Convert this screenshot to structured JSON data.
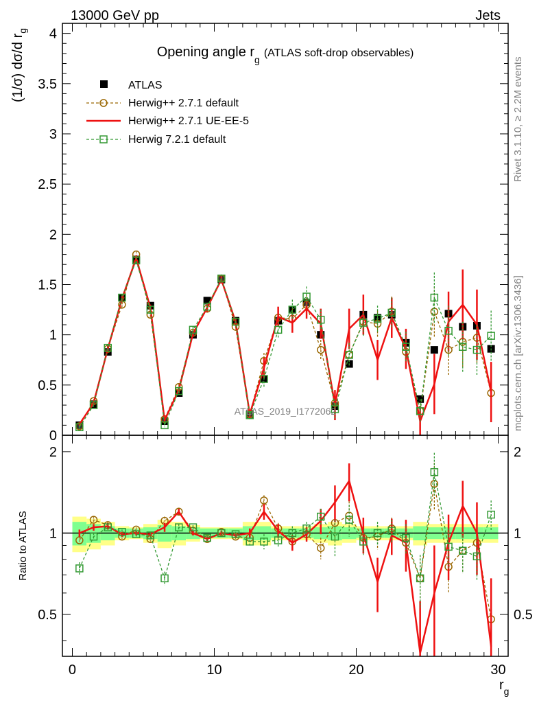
{
  "header": {
    "left": "13000 GeV pp",
    "right": "Jets"
  },
  "side_text": {
    "rivet": "Rivet 3.1.10, ≥ 2.2M events",
    "mcplots": "mcplots.cern.ch [arXiv:1306.3436]"
  },
  "watermark": "ATLAS_2019_I1772062",
  "colors": {
    "data": "#000000",
    "herwigpp_default": "#996600",
    "herwigpp_ueee5": "#ee1111",
    "herwig72_default": "#339933",
    "band_inner": "#7fff8f",
    "band_outer": "#ffff88"
  },
  "chart_data": [
    {
      "type": "line",
      "title": "Opening angle r_g (ATLAS soft-drop observables)",
      "title_parts": {
        "main": "Opening angle r",
        "sub": "g",
        "small": "(ATLAS soft-drop observables)"
      },
      "ylabel": "(1/σ) dσ/d r_g",
      "ylabel_parts": {
        "main": "(1/σ) dσ/d r",
        "sub": "g"
      },
      "xlim": [
        -0.7,
        30.7
      ],
      "ylim": [
        0,
        4.1
      ],
      "yticks": [
        0,
        0.5,
        1,
        1.5,
        2,
        2.5,
        3,
        3.5,
        4
      ],
      "ytick_labels": [
        "0",
        "0.5",
        "1",
        "1.5",
        "2",
        "2.5",
        "3",
        "3.5",
        "4"
      ],
      "legend_position": "top-left",
      "legend": [
        "ATLAS",
        "Herwig++ 2.7.1 default",
        "Herwig++ 2.7.1 UE-EE-5",
        "Herwig 7.2.1 default"
      ],
      "x": [
        0.5,
        1.5,
        2.5,
        3.5,
        4.5,
        5.5,
        6.5,
        7.5,
        8.5,
        9.5,
        10.5,
        11.5,
        12.5,
        13.5,
        14.5,
        15.5,
        16.5,
        17.5,
        18.5,
        19.5,
        20.5,
        21.5,
        22.5,
        23.5,
        24.5,
        25.5,
        26.5,
        27.5,
        28.5,
        29.5
      ],
      "series": [
        {
          "name": "ATLAS",
          "style": "markers",
          "values": [
            0.1,
            0.31,
            0.83,
            1.37,
            1.75,
            1.29,
            0.14,
            0.42,
            1.0,
            1.34,
            1.55,
            1.14,
            0.21,
            0.56,
            1.14,
            1.25,
            1.32,
            1.0,
            0.29,
            0.71,
            1.2,
            1.17,
            1.2,
            0.92,
            0.36,
            0.85,
            1.21,
            1.08,
            1.09,
            0.86
          ]
        },
        {
          "name": "Herwig++ 2.7.1 default",
          "style": "dashed-circle",
          "values": [
            0.09,
            0.34,
            0.86,
            1.3,
            1.8,
            1.2,
            0.16,
            0.48,
            1.02,
            1.26,
            1.56,
            1.08,
            0.21,
            0.74,
            1.17,
            1.16,
            1.3,
            0.85,
            0.32,
            0.8,
            1.13,
            1.11,
            1.23,
            0.83,
            0.24,
            1.23,
            0.85,
            0.93,
            0.97,
            0.42
          ],
          "errors": [
            0.01,
            0.02,
            0.03,
            0.03,
            0.03,
            0.03,
            0.02,
            0.03,
            0.03,
            0.04,
            0.04,
            0.04,
            0.03,
            0.08,
            0.08,
            0.1,
            0.1,
            0.1,
            0.1,
            0.12,
            0.13,
            0.13,
            0.15,
            0.15,
            0.12,
            0.25,
            0.25,
            0.25,
            0.25,
            0.25
          ]
        },
        {
          "name": "Herwig++ 2.7.1 UE-EE-5",
          "style": "solid",
          "values": [
            0.11,
            0.32,
            0.86,
            1.36,
            1.76,
            1.27,
            0.15,
            0.45,
            1.01,
            1.27,
            1.55,
            1.13,
            0.21,
            0.67,
            1.18,
            1.12,
            1.26,
            1.11,
            0.3,
            1.06,
            1.2,
            0.75,
            1.17,
            0.86,
            0.14,
            0.51,
            1.13,
            1.3,
            1.1,
            0.43
          ],
          "errors": [
            0.01,
            0.02,
            0.03,
            0.03,
            0.03,
            0.03,
            0.02,
            0.03,
            0.03,
            0.04,
            0.04,
            0.04,
            0.04,
            0.1,
            0.1,
            0.1,
            0.1,
            0.15,
            0.15,
            0.2,
            0.2,
            0.2,
            0.2,
            0.2,
            0.15,
            0.3,
            0.3,
            0.35,
            0.35,
            0.3
          ]
        },
        {
          "name": "Herwig 7.2.1 default",
          "style": "dashed-square",
          "values": [
            0.08,
            0.3,
            0.87,
            1.37,
            1.74,
            1.25,
            0.1,
            0.44,
            1.05,
            1.28,
            1.56,
            1.13,
            0.2,
            0.56,
            1.05,
            1.25,
            1.38,
            1.15,
            0.26,
            0.8,
            1.12,
            1.16,
            1.22,
            0.88,
            0.24,
            1.37,
            1.04,
            0.88,
            0.85,
            0.99
          ],
          "errors": [
            0.01,
            0.02,
            0.03,
            0.03,
            0.03,
            0.03,
            0.02,
            0.03,
            0.03,
            0.04,
            0.04,
            0.04,
            0.04,
            0.08,
            0.08,
            0.1,
            0.1,
            0.1,
            0.1,
            0.12,
            0.13,
            0.13,
            0.15,
            0.15,
            0.12,
            0.25,
            0.25,
            0.25,
            0.25,
            0.25
          ]
        }
      ]
    },
    {
      "type": "line",
      "ylabel": "Ratio to ATLAS",
      "xlabel": "r_g",
      "xlabel_parts": {
        "main": "r",
        "sub": "g"
      },
      "xlim": [
        -0.7,
        30.7
      ],
      "ylim": [
        0.35,
        2.3
      ],
      "yscale": "log",
      "yticks": [
        0.5,
        1,
        2
      ],
      "ytick_labels": [
        "0.5",
        "1",
        "2"
      ],
      "xticks": [
        0,
        10,
        20,
        30
      ],
      "xtick_labels": [
        "0",
        "10",
        "20",
        "30"
      ],
      "reference_line": 1,
      "x": [
        0.5,
        1.5,
        2.5,
        3.5,
        4.5,
        5.5,
        6.5,
        7.5,
        8.5,
        9.5,
        10.5,
        11.5,
        12.5,
        13.5,
        14.5,
        15.5,
        16.5,
        17.5,
        18.5,
        19.5,
        20.5,
        21.5,
        22.5,
        23.5,
        24.5,
        25.5,
        26.5,
        27.5,
        28.5,
        29.5
      ],
      "band_inner": [
        0.1,
        0.08,
        0.06,
        0.04,
        0.04,
        0.05,
        0.07,
        0.06,
        0.05,
        0.04,
        0.04,
        0.04,
        0.06,
        0.06,
        0.04,
        0.04,
        0.04,
        0.05,
        0.06,
        0.05,
        0.04,
        0.04,
        0.04,
        0.04,
        0.06,
        0.05,
        0.05,
        0.05,
        0.05,
        0.05
      ],
      "band_outer": [
        0.15,
        0.13,
        0.1,
        0.06,
        0.05,
        0.08,
        0.12,
        0.1,
        0.07,
        0.05,
        0.05,
        0.05,
        0.1,
        0.1,
        0.06,
        0.06,
        0.06,
        0.08,
        0.1,
        0.08,
        0.06,
        0.06,
        0.06,
        0.06,
        0.1,
        0.08,
        0.08,
        0.08,
        0.08,
        0.08
      ],
      "series": [
        {
          "name": "Herwig++ 2.7.1 default",
          "style": "dashed-circle",
          "values": [
            0.94,
            1.12,
            1.07,
            0.97,
            1.03,
            0.95,
            1.11,
            1.2,
            1.02,
            0.95,
            1.01,
            0.97,
            0.96,
            1.32,
            1.04,
            0.93,
            0.99,
            0.88,
            1.09,
            1.16,
            0.96,
            0.97,
            1.04,
            0.92,
            0.68,
            1.52,
            0.75,
            0.86,
            0.92,
            0.48
          ],
          "errors": [
            0.03,
            0.03,
            0.03,
            0.02,
            0.02,
            0.02,
            0.04,
            0.03,
            0.02,
            0.02,
            0.02,
            0.02,
            0.04,
            0.06,
            0.05,
            0.06,
            0.06,
            0.08,
            0.15,
            0.15,
            0.1,
            0.1,
            0.1,
            0.12,
            0.15,
            0.3,
            0.15,
            0.15,
            0.15,
            0.15
          ]
        },
        {
          "name": "Herwig++ 2.7.1 UE-EE-5",
          "style": "solid",
          "values": [
            1.0,
            1.05,
            1.06,
            0.99,
            1.0,
            0.99,
            1.05,
            1.2,
            1.0,
            0.95,
            1.0,
            0.98,
            1.0,
            1.2,
            1.02,
            0.92,
            0.99,
            1.11,
            1.3,
            1.56,
            0.99,
            0.66,
            0.98,
            0.92,
            0.36,
            0.6,
            0.92,
            1.26,
            1.0,
            0.38
          ],
          "errors": [
            0.03,
            0.03,
            0.03,
            0.02,
            0.02,
            0.02,
            0.04,
            0.03,
            0.02,
            0.02,
            0.02,
            0.02,
            0.04,
            0.08,
            0.06,
            0.06,
            0.06,
            0.12,
            0.2,
            0.25,
            0.15,
            0.15,
            0.15,
            0.2,
            0.2,
            0.3,
            0.25,
            0.3,
            0.3,
            0.3
          ]
        },
        {
          "name": "Herwig 7.2.1 default",
          "style": "dashed-square",
          "values": [
            0.74,
            0.97,
            1.05,
            1.01,
            0.99,
            0.98,
            0.68,
            1.05,
            1.05,
            0.96,
            1.0,
            0.99,
            0.93,
            0.93,
            0.94,
            1.0,
            1.04,
            1.15,
            0.97,
            1.12,
            0.93,
            1.0,
            1.02,
            0.96,
            0.68,
            1.68,
            0.89,
            0.86,
            0.82,
            1.17
          ],
          "errors": [
            0.04,
            0.03,
            0.03,
            0.02,
            0.02,
            0.02,
            0.04,
            0.03,
            0.02,
            0.02,
            0.02,
            0.02,
            0.04,
            0.06,
            0.05,
            0.06,
            0.06,
            0.08,
            0.15,
            0.15,
            0.1,
            0.1,
            0.1,
            0.12,
            0.15,
            0.3,
            0.15,
            0.15,
            0.15,
            0.15
          ]
        }
      ]
    }
  ]
}
